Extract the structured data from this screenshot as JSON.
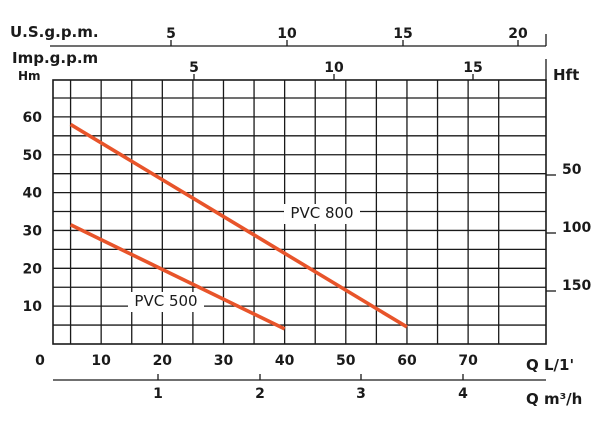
{
  "chart_data": {
    "type": "line",
    "title": "",
    "grid": true,
    "x_axes": [
      {
        "id": "lpm",
        "label": "Q  L/1'",
        "ticks": [
          "0",
          "10",
          "20",
          "30",
          "40",
          "50",
          "60",
          "70"
        ],
        "range": [
          0,
          80
        ]
      },
      {
        "id": "m3h",
        "label": "Q  m³/h",
        "ticks": [
          "1",
          "2",
          "3",
          "4"
        ],
        "range": [
          0,
          4.8
        ]
      },
      {
        "id": "usgpm",
        "label": "U.S.g.p.m.",
        "ticks": [
          "5",
          "10",
          "15",
          "20"
        ],
        "range": [
          0,
          21.1
        ]
      },
      {
        "id": "impgpm",
        "label": "Imp.g.p.m",
        "ticks": [
          "5",
          "10",
          "15"
        ],
        "range": [
          0,
          17.6
        ]
      }
    ],
    "y_axes": [
      {
        "id": "hm",
        "label": "Hm",
        "ticks": [
          "10",
          "20",
          "30",
          "40",
          "50",
          "60"
        ],
        "range": [
          0,
          70
        ]
      },
      {
        "id": "hft",
        "label": "Hft",
        "ticks": [
          "50",
          "100",
          "150"
        ],
        "range": [
          0,
          229.6
        ]
      }
    ],
    "series": [
      {
        "name": "PVC 800",
        "x": [
          5,
          60
        ],
        "y": [
          58,
          4.5
        ]
      },
      {
        "name": "PVC 500",
        "x": [
          5,
          40
        ],
        "y": [
          31.5,
          4
        ]
      }
    ],
    "colors": {
      "curve": "#e8542a",
      "grid": "#1a1a1a",
      "text": "#1a1a1a"
    }
  }
}
